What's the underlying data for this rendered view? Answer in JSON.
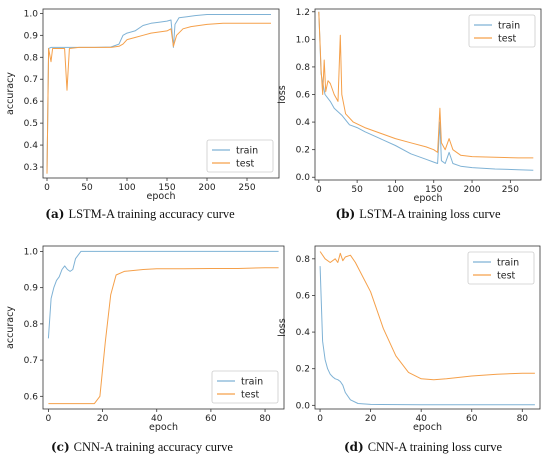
{
  "colors": {
    "train": "#7fb2d5",
    "test": "#f5a04a"
  },
  "captions": [
    {
      "letter": "(a)",
      "text": "LSTM-A training accuracy curve"
    },
    {
      "letter": "(b)",
      "text": "LSTM-A training loss curve"
    },
    {
      "letter": "(c)",
      "text": "CNN-A training accuracy curve"
    },
    {
      "letter": "(d)",
      "text": "CNN-A training loss curve"
    }
  ],
  "chart_data": [
    {
      "type": "line",
      "xlabel": "epoch",
      "ylabel": "accuracy",
      "xlim": [
        -5,
        290
      ],
      "ylim": [
        0.25,
        1.02
      ],
      "xticks": [
        0,
        50,
        100,
        150,
        200,
        250
      ],
      "yticks": [
        0.3,
        0.4,
        0.5,
        0.6,
        0.7,
        0.8,
        0.9,
        1.0
      ],
      "legend": "lower-right",
      "series": [
        {
          "name": "train",
          "points": [
            [
              0,
              0.27
            ],
            [
              2,
              0.84
            ],
            [
              5,
              0.845
            ],
            [
              20,
              0.845
            ],
            [
              40,
              0.845
            ],
            [
              60,
              0.845
            ],
            [
              80,
              0.847
            ],
            [
              90,
              0.86
            ],
            [
              95,
              0.9
            ],
            [
              100,
              0.91
            ],
            [
              110,
              0.92
            ],
            [
              120,
              0.945
            ],
            [
              130,
              0.955
            ],
            [
              140,
              0.96
            ],
            [
              150,
              0.965
            ],
            [
              155,
              0.97
            ],
            [
              158,
              0.845
            ],
            [
              160,
              0.95
            ],
            [
              165,
              0.98
            ],
            [
              175,
              0.985
            ],
            [
              185,
              0.99
            ],
            [
              200,
              0.995
            ],
            [
              220,
              0.995
            ],
            [
              250,
              0.995
            ],
            [
              280,
              0.995
            ]
          ]
        },
        {
          "name": "test",
          "points": [
            [
              0,
              0.27
            ],
            [
              2,
              0.84
            ],
            [
              5,
              0.78
            ],
            [
              7,
              0.84
            ],
            [
              15,
              0.84
            ],
            [
              22,
              0.84
            ],
            [
              25,
              0.65
            ],
            [
              28,
              0.84
            ],
            [
              40,
              0.845
            ],
            [
              60,
              0.845
            ],
            [
              80,
              0.845
            ],
            [
              90,
              0.85
            ],
            [
              95,
              0.86
            ],
            [
              100,
              0.88
            ],
            [
              110,
              0.89
            ],
            [
              120,
              0.9
            ],
            [
              130,
              0.91
            ],
            [
              140,
              0.915
            ],
            [
              150,
              0.92
            ],
            [
              155,
              0.93
            ],
            [
              158,
              0.85
            ],
            [
              162,
              0.9
            ],
            [
              170,
              0.93
            ],
            [
              180,
              0.94
            ],
            [
              200,
              0.95
            ],
            [
              220,
              0.955
            ],
            [
              250,
              0.955
            ],
            [
              280,
              0.955
            ]
          ]
        }
      ]
    },
    {
      "type": "line",
      "xlabel": "epoch",
      "ylabel": "loss",
      "xlim": [
        -5,
        290
      ],
      "ylim": [
        -0.02,
        1.22
      ],
      "xticks": [
        0,
        50,
        100,
        150,
        200,
        250
      ],
      "yticks": [
        0.0,
        0.2,
        0.4,
        0.6,
        0.8,
        1.0,
        1.2
      ],
      "legend": "upper-right",
      "series": [
        {
          "name": "train",
          "points": [
            [
              0,
              1.2
            ],
            [
              3,
              0.75
            ],
            [
              8,
              0.6
            ],
            [
              15,
              0.55
            ],
            [
              20,
              0.5
            ],
            [
              30,
              0.45
            ],
            [
              40,
              0.38
            ],
            [
              50,
              0.36
            ],
            [
              60,
              0.33
            ],
            [
              80,
              0.28
            ],
            [
              100,
              0.23
            ],
            [
              120,
              0.17
            ],
            [
              140,
              0.13
            ],
            [
              150,
              0.11
            ],
            [
              155,
              0.1
            ],
            [
              158,
              0.4
            ],
            [
              160,
              0.12
            ],
            [
              165,
              0.1
            ],
            [
              170,
              0.18
            ],
            [
              175,
              0.1
            ],
            [
              185,
              0.08
            ],
            [
              200,
              0.07
            ],
            [
              230,
              0.06
            ],
            [
              260,
              0.055
            ],
            [
              280,
              0.05
            ]
          ]
        },
        {
          "name": "test",
          "points": [
            [
              0,
              1.2
            ],
            [
              3,
              0.78
            ],
            [
              5,
              0.6
            ],
            [
              7,
              0.85
            ],
            [
              9,
              0.62
            ],
            [
              12,
              0.7
            ],
            [
              15,
              0.68
            ],
            [
              20,
              0.6
            ],
            [
              25,
              0.55
            ],
            [
              28,
              1.03
            ],
            [
              30,
              0.6
            ],
            [
              35,
              0.46
            ],
            [
              45,
              0.4
            ],
            [
              60,
              0.36
            ],
            [
              80,
              0.32
            ],
            [
              100,
              0.28
            ],
            [
              120,
              0.25
            ],
            [
              140,
              0.22
            ],
            [
              150,
              0.2
            ],
            [
              155,
              0.18
            ],
            [
              158,
              0.5
            ],
            [
              160,
              0.25
            ],
            [
              165,
              0.2
            ],
            [
              170,
              0.28
            ],
            [
              175,
              0.2
            ],
            [
              185,
              0.16
            ],
            [
              200,
              0.15
            ],
            [
              230,
              0.145
            ],
            [
              260,
              0.14
            ],
            [
              280,
              0.14
            ]
          ]
        }
      ]
    },
    {
      "type": "line",
      "xlabel": "epoch",
      "ylabel": "accuracy",
      "xlim": [
        -2,
        87
      ],
      "ylim": [
        0.565,
        1.015
      ],
      "xticks": [
        0,
        20,
        40,
        60,
        80
      ],
      "yticks": [
        0.6,
        0.7,
        0.8,
        0.9,
        1.0
      ],
      "legend": "lower-right",
      "series": [
        {
          "name": "train",
          "points": [
            [
              0,
              0.76
            ],
            [
              1,
              0.87
            ],
            [
              2,
              0.9
            ],
            [
              3,
              0.92
            ],
            [
              4,
              0.93
            ],
            [
              5,
              0.95
            ],
            [
              6,
              0.96
            ],
            [
              7,
              0.95
            ],
            [
              8,
              0.945
            ],
            [
              9,
              0.95
            ],
            [
              10,
              0.98
            ],
            [
              12,
              1.0
            ],
            [
              20,
              1.0
            ],
            [
              40,
              1.0
            ],
            [
              60,
              1.0
            ],
            [
              85,
              1.0
            ]
          ]
        },
        {
          "name": "test",
          "points": [
            [
              0,
              0.58
            ],
            [
              10,
              0.58
            ],
            [
              17,
              0.58
            ],
            [
              19,
              0.6
            ],
            [
              21,
              0.75
            ],
            [
              23,
              0.88
            ],
            [
              25,
              0.935
            ],
            [
              28,
              0.945
            ],
            [
              35,
              0.95
            ],
            [
              40,
              0.952
            ],
            [
              50,
              0.952
            ],
            [
              60,
              0.953
            ],
            [
              70,
              0.953
            ],
            [
              80,
              0.955
            ],
            [
              85,
              0.955
            ]
          ]
        }
      ]
    },
    {
      "type": "line",
      "xlabel": "epoch",
      "ylabel": "loss",
      "xlim": [
        -2,
        87
      ],
      "ylim": [
        -0.02,
        0.87
      ],
      "xticks": [
        0,
        20,
        40,
        60,
        80
      ],
      "yticks": [
        0.0,
        0.2,
        0.4,
        0.6,
        0.8
      ],
      "legend": "upper-right",
      "series": [
        {
          "name": "train",
          "points": [
            [
              0,
              0.76
            ],
            [
              1,
              0.35
            ],
            [
              2,
              0.25
            ],
            [
              3,
              0.2
            ],
            [
              4,
              0.17
            ],
            [
              5,
              0.155
            ],
            [
              6,
              0.145
            ],
            [
              7,
              0.14
            ],
            [
              8,
              0.13
            ],
            [
              9,
              0.11
            ],
            [
              10,
              0.07
            ],
            [
              12,
              0.03
            ],
            [
              15,
              0.01
            ],
            [
              20,
              0.005
            ],
            [
              40,
              0.003
            ],
            [
              60,
              0.003
            ],
            [
              85,
              0.003
            ]
          ]
        },
        {
          "name": "test",
          "points": [
            [
              0,
              0.84
            ],
            [
              2,
              0.8
            ],
            [
              4,
              0.78
            ],
            [
              6,
              0.8
            ],
            [
              7,
              0.78
            ],
            [
              8,
              0.83
            ],
            [
              9,
              0.79
            ],
            [
              10,
              0.81
            ],
            [
              12,
              0.82
            ],
            [
              14,
              0.78
            ],
            [
              20,
              0.62
            ],
            [
              25,
              0.42
            ],
            [
              30,
              0.27
            ],
            [
              35,
              0.18
            ],
            [
              40,
              0.145
            ],
            [
              45,
              0.14
            ],
            [
              50,
              0.145
            ],
            [
              60,
              0.16
            ],
            [
              70,
              0.17
            ],
            [
              80,
              0.175
            ],
            [
              85,
              0.175
            ]
          ]
        }
      ]
    }
  ]
}
